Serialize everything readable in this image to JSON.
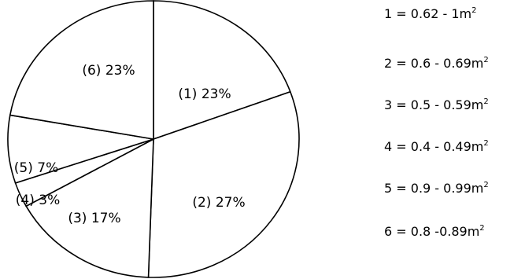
{
  "chart_data": {
    "type": "pie",
    "slices": [
      {
        "label": "(1) 23%",
        "value": 23
      },
      {
        "label": "(2) 27%",
        "value": 27
      },
      {
        "label": "(3) 17%",
        "value": 17
      },
      {
        "label": "(4) 3%",
        "value": 3
      },
      {
        "label": "(5) 7%",
        "value": 7
      },
      {
        "label": "(6) 23%",
        "value": 23
      }
    ],
    "legend": [
      {
        "text": "1 = 0.62 - 1m",
        "sup": "2"
      },
      {
        "text": "2 = 0.6 - 0.69m",
        "sup": "2"
      },
      {
        "text": "3 = 0.5 - 0.59m",
        "sup": "2"
      },
      {
        "text": "4 = 0.4 - 0.49m",
        "sup": "2"
      },
      {
        "text": "5 = 0.9 - 0.99m",
        "sup": "2"
      },
      {
        "text": "6 = 0.8 -0.89m",
        "sup": "2"
      }
    ],
    "legend_placement": "right",
    "colors": {
      "fill": "#ffffff",
      "stroke": "#000000"
    }
  }
}
